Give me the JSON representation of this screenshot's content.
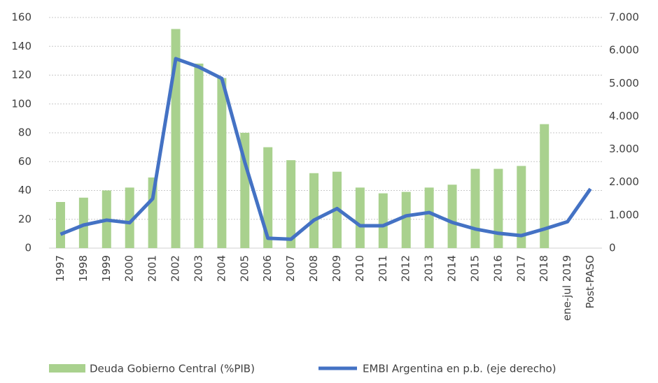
{
  "chart_data": {
    "type": "bar-line",
    "categories": [
      "1997",
      "1998",
      "1999",
      "2000",
      "2001",
      "2002",
      "2003",
      "2004",
      "2005",
      "2006",
      "2007",
      "2008",
      "2009",
      "2010",
      "2011",
      "2012",
      "2013",
      "2014",
      "2015",
      "2016",
      "2017",
      "2018",
      "ene-jul 2019",
      "Post-PASO"
    ],
    "series": [
      {
        "name": "Deuda Gobierno Central (%PIB)",
        "type": "bar",
        "color": "#a9d18e",
        "values": [
          32,
          35,
          40,
          42,
          49,
          152,
          128,
          118,
          80,
          70,
          61,
          52,
          53,
          42,
          38,
          39,
          42,
          44,
          55,
          55,
          57,
          86,
          null,
          null
        ]
      },
      {
        "name": "EMBI Argentina en p.b. (eje derecho)",
        "type": "line",
        "axis": "y2",
        "color": "#4472c4",
        "values": [
          420,
          700,
          850,
          770,
          1500,
          5750,
          5500,
          5150,
          2600,
          300,
          270,
          850,
          1200,
          680,
          680,
          980,
          1080,
          780,
          580,
          450,
          380,
          580,
          800,
          1800
        ]
      }
    ],
    "ylim": [
      0,
      160
    ],
    "yticks": [
      0,
      20,
      40,
      60,
      80,
      100,
      120,
      140,
      160
    ],
    "y2lim": [
      0,
      7000
    ],
    "y2ticks": [
      0,
      {
        "value": 1000,
        "label": "1.000"
      },
      {
        "value": 2000,
        "label": "2.000"
      },
      {
        "value": 3000,
        "label": "3.000"
      },
      {
        "value": 4000,
        "label": "4.000"
      },
      {
        "value": 5000,
        "label": "5.000"
      },
      {
        "value": 6000,
        "label": "6.000"
      },
      {
        "value": 7000,
        "label": "7.000"
      }
    ],
    "grid": true
  }
}
